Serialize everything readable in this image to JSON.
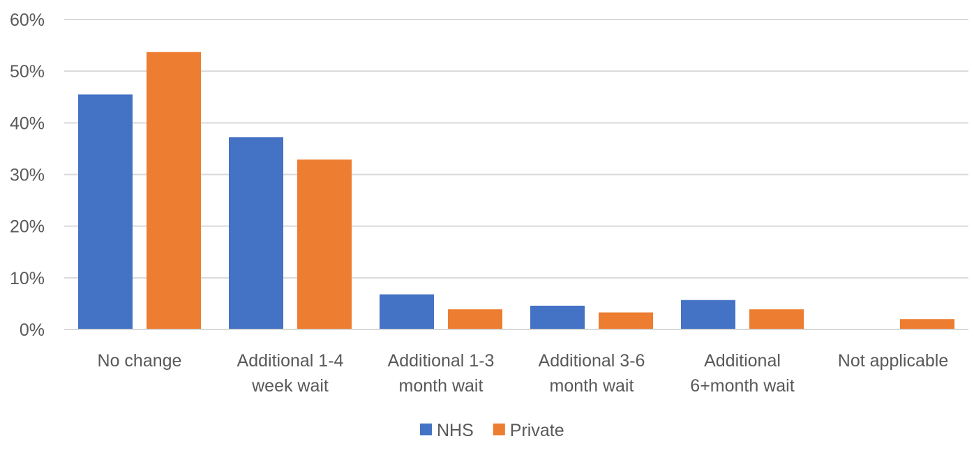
{
  "chart_data": {
    "type": "bar",
    "categories": [
      [
        "No change"
      ],
      [
        "Additional 1-4",
        "week wait"
      ],
      [
        "Additional 1-3",
        "month wait"
      ],
      [
        "Additional 3-6",
        "month wait"
      ],
      [
        "Additional",
        "6+month wait"
      ],
      [
        "Not applicable"
      ]
    ],
    "series": [
      {
        "name": "NHS",
        "color": "#4472C4",
        "values": [
          45.5,
          37.2,
          6.8,
          4.6,
          5.7,
          0
        ]
      },
      {
        "name": "Private",
        "color": "#ED7D31",
        "values": [
          53.7,
          32.9,
          3.9,
          3.3,
          3.9,
          2.0
        ]
      }
    ],
    "y_ticks": [
      "0%",
      "10%",
      "20%",
      "30%",
      "40%",
      "50%",
      "60%"
    ],
    "ylim": [
      0,
      60
    ],
    "grid": true,
    "legend": "bottom-center",
    "title": "",
    "xlabel": "",
    "ylabel": ""
  }
}
